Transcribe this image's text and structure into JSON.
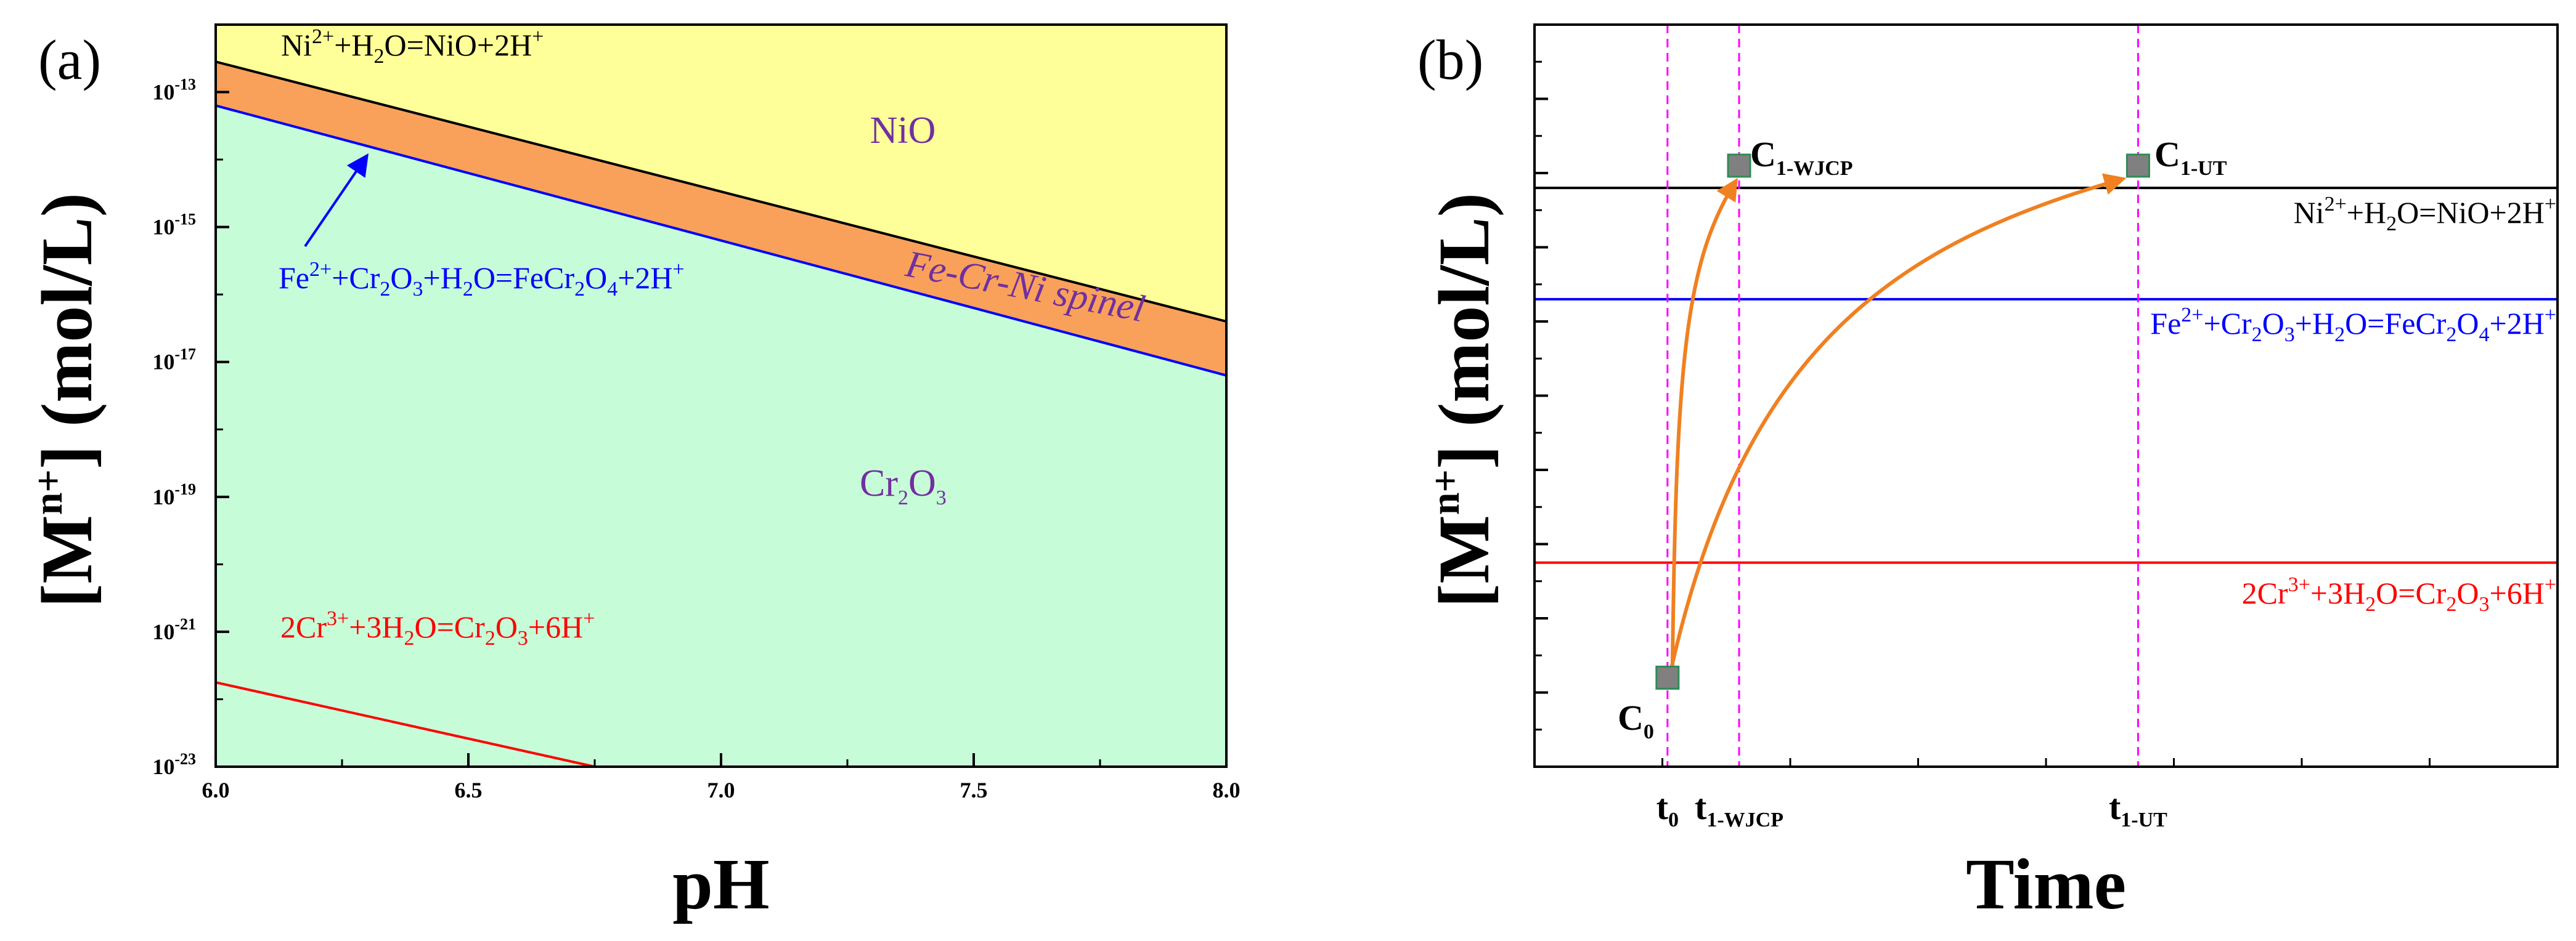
{
  "chart_data": [
    {
      "type": "area",
      "panel_label": "(a)",
      "title": "",
      "xlabel": "pH",
      "ylabel": "[M",
      "ylabel_sup": "n+",
      "ylabel_rest": "] (mol/L)",
      "xlim": [
        6.0,
        8.0
      ],
      "ylim_log10": [
        -23,
        -12
      ],
      "x_ticks": [
        "6.0",
        "6.5",
        "7.0",
        "7.5",
        "8.0"
      ],
      "x_tick_values": [
        6.0,
        6.5,
        7.0,
        7.5,
        8.0
      ],
      "y_tick_exponents": [
        -13,
        -15,
        -17,
        -19,
        -21,
        -23
      ],
      "y_tick_base": "10",
      "series": [
        {
          "name": "Ni2+ + H2O = NiO + 2H+",
          "color": "#000000",
          "x": [
            6.0,
            8.0
          ],
          "log10_y": [
            -12.55,
            -16.4
          ]
        },
        {
          "name": "Fe2+ + Cr2O3 + H2O = FeCr2O4 + 2H+",
          "color": "#0000ff",
          "x": [
            6.0,
            8.0
          ],
          "log10_y": [
            -13.2,
            -17.2
          ]
        },
        {
          "name": "2Cr3+ + 3H2O = Cr2O3 + 6H+",
          "color": "#ff0000",
          "x": [
            6.0,
            6.75
          ],
          "log10_y": [
            -21.75,
            -23.0
          ]
        }
      ],
      "regions": {
        "nio": {
          "label": "NiO",
          "color": "#ffff99"
        },
        "spinel": {
          "label": "Fe-Cr-Ni spinel",
          "color": "#f9a15a"
        },
        "cr2o3": {
          "label_main": "Cr",
          "label_sub1": "2",
          "label_mid": "O",
          "label_sub2": "3",
          "color": "#c7fcd8"
        }
      },
      "equation_labels": {
        "ni": {
          "p1": "Ni",
          "sup1": "2+",
          "p2": "+H",
          "sub1": "2",
          "p3": "O=NiO+2H",
          "sup2": "+"
        },
        "fe": {
          "p1": "Fe",
          "sup1": "2+",
          "p2": "+Cr",
          "sub1": "2",
          "p3": "O",
          "sub2": "3",
          "p4": "+H",
          "sub3": "2",
          "p5": "O=FeCr",
          "sub4": "2",
          "p6": "O",
          "sub5": "4",
          "p7": "+2H",
          "sup2": "+"
        },
        "cr": {
          "p1": "2Cr",
          "sup1": "3+",
          "p2": "+3H",
          "sub1": "2",
          "p3": "O=Cr",
          "sub2": "2",
          "p4": "O",
          "sub3": "3",
          "p5": "+6H",
          "sup2": "+"
        }
      }
    },
    {
      "type": "line",
      "panel_label": "(b)",
      "title": "",
      "xlabel": "Time",
      "ylabel": "[M",
      "ylabel_sup": "n+",
      "ylabel_rest": "] (mol/L)",
      "xlim": [
        0,
        10
      ],
      "ylim": [
        0,
        10
      ],
      "x_tick_labels": [
        {
          "main": "t",
          "sub": "0",
          "x": 1.3
        },
        {
          "main": "t",
          "sub": "1-WJCP",
          "x": 2.0
        },
        {
          "main": "t",
          "sub": "1-UT",
          "x": 5.9
        }
      ],
      "horizontal_lines": [
        {
          "name": "Ni2+ + H2O = NiO + 2H+",
          "y": 7.8,
          "color": "#000000"
        },
        {
          "name": "Fe2+ + Cr2O3 + H2O = FeCr2O4 + 2H+",
          "y": 6.3,
          "color": "#0000ff"
        },
        {
          "name": "2Cr3+ + 3H2O = Cr2O3 + 6H+",
          "y": 2.75,
          "color": "#ff0000"
        }
      ],
      "vertical_lines_x": [
        1.3,
        2.0,
        5.9
      ],
      "points": [
        {
          "label_main": "C",
          "label_sub": "0",
          "x": 1.3,
          "y": 1.2
        },
        {
          "label_main": "C",
          "label_sub": "1-WJCP",
          "x": 2.0,
          "y": 8.1
        },
        {
          "label_main": "C",
          "label_sub": "1-UT",
          "x": 5.9,
          "y": 8.1
        }
      ],
      "curves": [
        {
          "name": "WJCP path",
          "from": [
            1.3,
            1.2
          ],
          "to": [
            2.0,
            8.1
          ],
          "color": "#f08020"
        },
        {
          "name": "UT path",
          "from": [
            1.3,
            1.2
          ],
          "to": [
            5.9,
            8.1
          ],
          "color": "#f08020"
        }
      ],
      "equation_labels": {
        "ni": {
          "p1": "Ni",
          "sup1": "2+",
          "p2": "+H",
          "sub1": "2",
          "p3": "O=NiO+2H",
          "sup2": "+"
        },
        "fe": {
          "p1": "Fe",
          "sup1": "2+",
          "p2": "+Cr",
          "sub1": "2",
          "p3": "O",
          "sub2": "3",
          "p4": "+H",
          "sub3": "2",
          "p5": "O=FeCr",
          "sub4": "2",
          "p6": "O",
          "sub5": "4",
          "p7": "+2H",
          "sup2": "+"
        },
        "cr": {
          "p1": "2Cr",
          "sup1": "3+",
          "p2": "+3H",
          "sub1": "2",
          "p3": "O=Cr",
          "sub2": "2",
          "p4": "O",
          "sub3": "3",
          "p5": "+6H",
          "sup2": "+"
        }
      }
    }
  ]
}
